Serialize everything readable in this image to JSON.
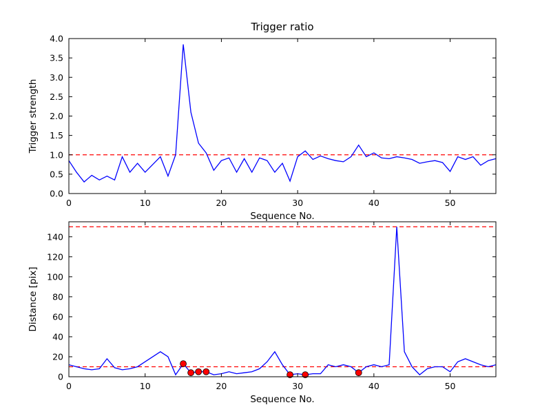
{
  "figure": {
    "background": "#ffffff",
    "line_color": "#0000ff",
    "threshold_color": "#ff0000",
    "marker_fill": "#ff0000",
    "marker_edge": "#000000",
    "axis_color": "#000000"
  },
  "chart_data": [
    {
      "type": "line",
      "name": "trigger-ratio-plot",
      "title": "Trigger ratio",
      "xlabel": "Sequence No.",
      "ylabel": "Trigger strength",
      "xlim": [
        0,
        56
      ],
      "ylim": [
        0,
        4.0
      ],
      "xticks": [
        0,
        10,
        20,
        30,
        40,
        50
      ],
      "xticklabels": [
        "0",
        "10",
        "20",
        "30",
        "40",
        "50"
      ],
      "yticks": [
        0.0,
        0.5,
        1.0,
        1.5,
        2.0,
        2.5,
        3.0,
        3.5,
        4.0
      ],
      "yticklabels": [
        "0.0",
        "0.5",
        "1.0",
        "1.5",
        "2.0",
        "2.5",
        "3.0",
        "3.5",
        "4.0"
      ],
      "grid": false,
      "legend": null,
      "hlines": [
        {
          "y": 1.0,
          "color": "#ff0000",
          "style": "dashed"
        }
      ],
      "series": [
        {
          "name": "trigger-strength",
          "color": "#0000ff",
          "x": [
            0,
            1,
            2,
            3,
            4,
            5,
            6,
            7,
            8,
            9,
            10,
            11,
            12,
            13,
            14,
            15,
            16,
            17,
            18,
            19,
            20,
            21,
            22,
            23,
            24,
            25,
            26,
            27,
            28,
            29,
            30,
            31,
            32,
            33,
            34,
            35,
            36,
            37,
            38,
            39,
            40,
            41,
            42,
            43,
            44,
            45,
            46,
            47,
            48,
            49,
            50,
            51,
            52,
            53,
            54,
            55,
            56
          ],
          "y": [
            0.85,
            0.55,
            0.3,
            0.47,
            0.35,
            0.45,
            0.35,
            0.95,
            0.55,
            0.78,
            0.55,
            0.75,
            0.95,
            0.45,
            1.0,
            3.85,
            2.1,
            1.3,
            1.05,
            0.6,
            0.85,
            0.92,
            0.55,
            0.9,
            0.55,
            0.92,
            0.85,
            0.55,
            0.78,
            0.32,
            0.95,
            1.1,
            0.88,
            0.97,
            0.9,
            0.85,
            0.82,
            0.95,
            1.25,
            0.95,
            1.05,
            0.92,
            0.9,
            0.95,
            0.92,
            0.88,
            0.78,
            0.82,
            0.85,
            0.8,
            0.57,
            0.95,
            0.88,
            0.95,
            0.73,
            0.85,
            0.9
          ]
        }
      ],
      "markers": []
    },
    {
      "type": "line",
      "name": "distance-plot",
      "title": "",
      "xlabel": "Sequence No.",
      "ylabel": "Distance [pix]",
      "xlim": [
        0,
        56
      ],
      "ylim": [
        0,
        155
      ],
      "xticks": [
        0,
        10,
        20,
        30,
        40,
        50
      ],
      "xticklabels": [
        "0",
        "10",
        "20",
        "30",
        "40",
        "50"
      ],
      "yticks": [
        0,
        20,
        40,
        60,
        80,
        100,
        120,
        140
      ],
      "yticklabels": [
        "0",
        "20",
        "40",
        "60",
        "80",
        "100",
        "120",
        "140"
      ],
      "grid": false,
      "legend": null,
      "hlines": [
        {
          "y": 150,
          "color": "#ff0000",
          "style": "dashed"
        },
        {
          "y": 10,
          "color": "#ff0000",
          "style": "dashed"
        }
      ],
      "series": [
        {
          "name": "distance",
          "color": "#0000ff",
          "x": [
            0,
            1,
            2,
            3,
            4,
            5,
            6,
            7,
            8,
            9,
            10,
            11,
            12,
            13,
            14,
            15,
            16,
            17,
            18,
            19,
            20,
            21,
            22,
            23,
            24,
            25,
            26,
            27,
            28,
            29,
            30,
            31,
            32,
            33,
            34,
            35,
            36,
            37,
            38,
            39,
            40,
            41,
            42,
            43,
            44,
            45,
            46,
            47,
            48,
            49,
            50,
            51,
            52,
            53,
            54,
            55,
            56
          ],
          "y": [
            12,
            10,
            8,
            7,
            8,
            18,
            9,
            7,
            8,
            10,
            15,
            20,
            25,
            20,
            2,
            13,
            4,
            5,
            5,
            2,
            3,
            5,
            3,
            4,
            5,
            8,
            15,
            25,
            12,
            2,
            3,
            2,
            3,
            3,
            12,
            10,
            12,
            10,
            4,
            10,
            12,
            10,
            12,
            150,
            25,
            10,
            2,
            8,
            10,
            10,
            5,
            15,
            18,
            15,
            12,
            10,
            12
          ]
        }
      ],
      "markers": [
        {
          "x": 15,
          "y": 13
        },
        {
          "x": 16,
          "y": 4
        },
        {
          "x": 17,
          "y": 5
        },
        {
          "x": 18,
          "y": 5
        },
        {
          "x": 29,
          "y": 2
        },
        {
          "x": 31,
          "y": 2
        },
        {
          "x": 38,
          "y": 4
        }
      ]
    }
  ]
}
